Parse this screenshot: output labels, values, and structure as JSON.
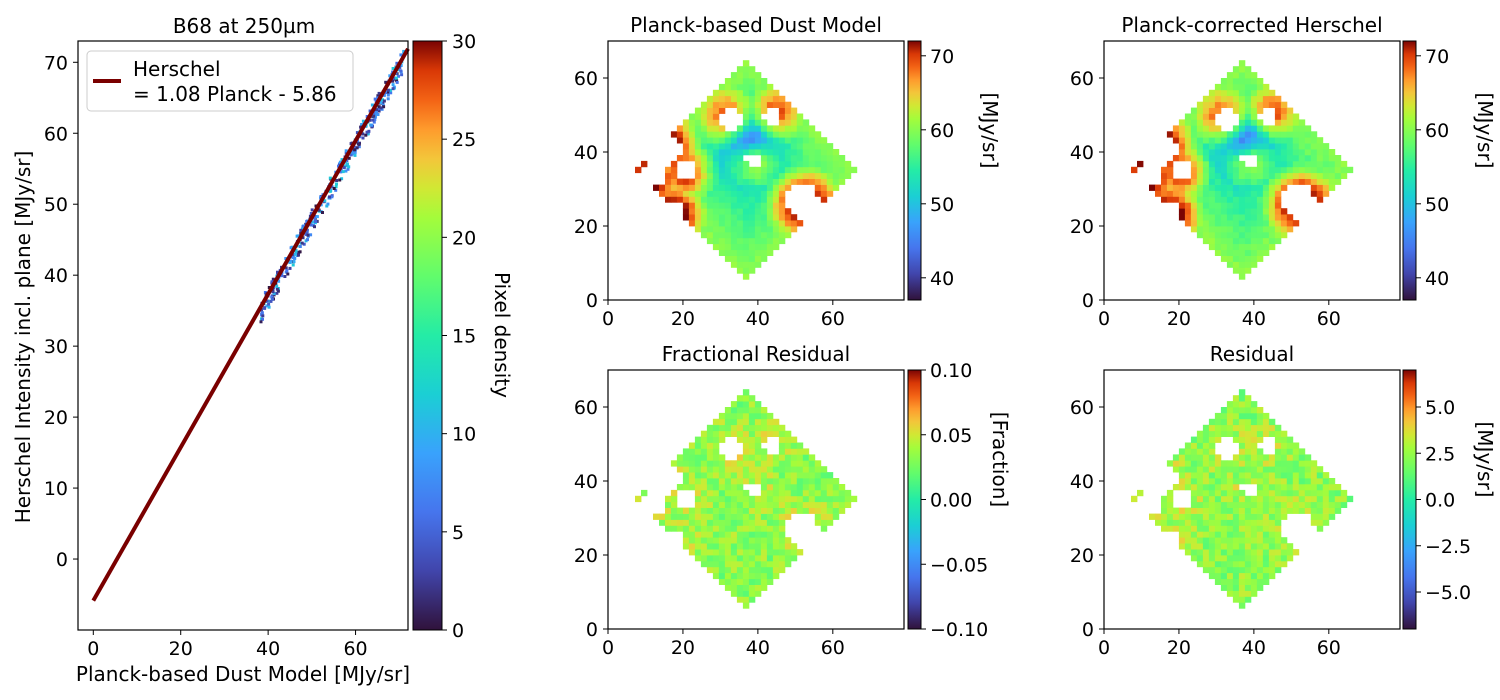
{
  "figure": {
    "background": "#ffffff"
  },
  "scatter_panel": {
    "title": "B68 at 250µm",
    "xlabel": "Planck-based Dust Model [MJy/sr]",
    "ylabel": "Herschel Intensity incl. plane [MJy/sr]",
    "legend": {
      "line1": "Herschel",
      "line2": "= 1.08 Planck - 5.86",
      "color": "#7a0000"
    },
    "colorbar_label": "Pixel density",
    "xticks": [
      "0",
      "20",
      "40",
      "60"
    ],
    "yticks": [
      "0",
      "10",
      "20",
      "30",
      "40",
      "50",
      "60",
      "70"
    ],
    "cbar_ticks": [
      "0",
      "5",
      "10",
      "15",
      "20",
      "25",
      "30"
    ]
  },
  "map_panels": [
    {
      "title": "Planck-based Dust Model",
      "cbar_label": "[MJy/sr]",
      "cbar_ticks": [
        "40",
        "50",
        "60",
        "70"
      ]
    },
    {
      "title": "Planck-corrected Herschel",
      "cbar_label": "[MJy/sr]",
      "cbar_ticks": [
        "40",
        "50",
        "60",
        "70"
      ]
    },
    {
      "title": "Fractional Residual",
      "cbar_label": "[Fraction]",
      "cbar_ticks": [
        "−0.10",
        "−0.05",
        "0.00",
        "0.05",
        "0.10"
      ]
    },
    {
      "title": "Residual",
      "cbar_label": "[MJy/sr]",
      "cbar_ticks": [
        "−5.0",
        "−2.5",
        "0.0",
        "2.5",
        "5.0"
      ]
    }
  ],
  "map_axis_ticks": {
    "x": [
      "0",
      "20",
      "40",
      "60"
    ],
    "y": [
      "0",
      "20",
      "40",
      "60"
    ]
  },
  "chart_data": [
    {
      "type": "scatter",
      "title": "B68 at 250µm",
      "xlabel": "Planck-based Dust Model [MJy/sr]",
      "ylabel": "Herschel Intensity incl. plane [MJy/sr]",
      "xlim": [
        -3.5,
        72
      ],
      "ylim": [
        -10,
        73
      ],
      "density_range": [
        0,
        30
      ],
      "colorbar": {
        "label": "Pixel density",
        "range": [
          0,
          30
        ],
        "colormap": "turbo"
      },
      "fit_line": {
        "slope": 1.08,
        "intercept": -5.86,
        "x_range": [
          0,
          72
        ],
        "label": "Herschel = 1.08 Planck - 5.86",
        "color": "#7a0000"
      },
      "points_x_range": [
        38,
        71
      ],
      "grid": false,
      "legend_position": "upper-left"
    },
    {
      "type": "heatmap",
      "title": "Planck-based Dust Model",
      "xlim": [
        0,
        79
      ],
      "ylim": [
        0,
        70
      ],
      "color_range": [
        37,
        72
      ],
      "colorbar_label": "[MJy/sr]",
      "colormap": "turbo"
    },
    {
      "type": "heatmap",
      "title": "Planck-corrected Herschel",
      "xlim": [
        0,
        79
      ],
      "ylim": [
        0,
        70
      ],
      "color_range": [
        37,
        72
      ],
      "colorbar_label": "[MJy/sr]",
      "colormap": "turbo"
    },
    {
      "type": "heatmap",
      "title": "Fractional Residual",
      "xlim": [
        0,
        79
      ],
      "ylim": [
        0,
        70
      ],
      "color_range": [
        -0.1,
        0.1
      ],
      "colorbar_label": "[Fraction]",
      "colormap": "turbo"
    },
    {
      "type": "heatmap",
      "title": "Residual",
      "xlim": [
        0,
        79
      ],
      "ylim": [
        0,
        70
      ],
      "color_range": [
        -7,
        7
      ],
      "colorbar_label": "[MJy/sr]",
      "colormap": "turbo"
    }
  ]
}
